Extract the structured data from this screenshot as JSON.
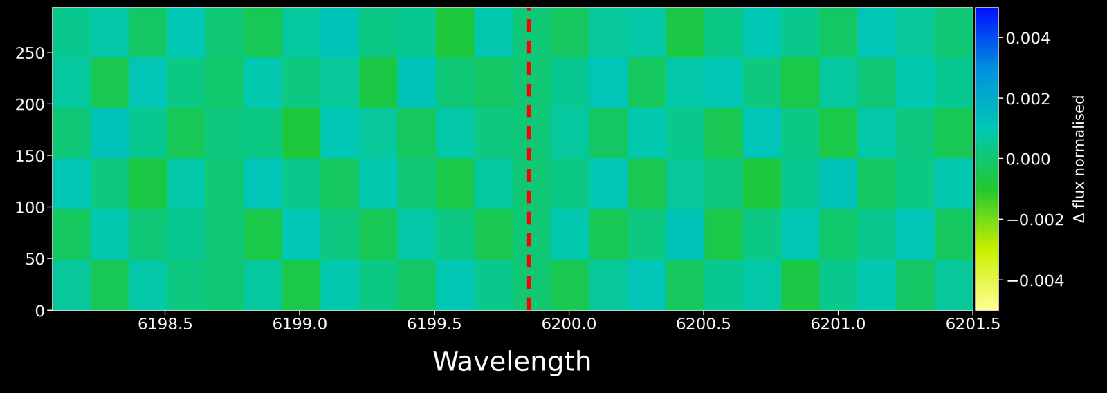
{
  "chart_data": {
    "type": "heatmap",
    "x_label": "Wavelength",
    "xlim": [
      6198.08,
      6201.5
    ],
    "xticks": [
      6198.5,
      6199.0,
      6199.5,
      6200.0,
      6200.5,
      6201.0,
      6201.5
    ],
    "ylim": [
      0,
      294
    ],
    "yticks": [
      0,
      50,
      100,
      150,
      200,
      250
    ],
    "vline": 6199.85,
    "colorbar_label": "Δ flux normalised",
    "colorbar_range": [
      -0.005,
      0.005
    ],
    "colorbar_ticks": [
      -0.004,
      -0.002,
      0.0,
      0.002,
      0.004
    ],
    "cells": [
      [
        0.0006,
        -0.0004,
        0.0008,
        0.0002,
        0.0,
        0.0007,
        -0.0006,
        0.0009,
        0.0003,
        -0.0002,
        0.001,
        0.0004,
        0.0,
        -0.0005,
        0.0006,
        0.0011,
        -0.0003,
        0.0005,
        0.0008,
        -0.0007,
        0.0004,
        0.0009,
        -0.0002,
        0.0006
      ],
      [
        -0.0003,
        0.0009,
        0.0001,
        0.0005,
        0.0001,
        -0.0006,
        0.001,
        0.0002,
        -0.0004,
        0.0008,
        0.0003,
        -0.0005,
        0.0001,
        0.0009,
        -0.0004,
        0.0002,
        0.0012,
        -0.0006,
        0.0003,
        0.001,
        -0.0001,
        0.0004,
        0.0011,
        -0.0003
      ],
      [
        0.001,
        0.0002,
        -0.0007,
        0.0008,
        0.0,
        0.0011,
        0.0004,
        -0.0003,
        0.0009,
        0.0001,
        -0.0006,
        0.0007,
        0.0,
        0.0003,
        0.001,
        -0.0005,
        0.0006,
        0.0002,
        -0.0008,
        0.0005,
        0.0012,
        -0.0002,
        0.0003,
        0.0009
      ],
      [
        0.0001,
        0.0012,
        0.0005,
        -0.0004,
        0.0002,
        0.0003,
        -0.0008,
        0.001,
        0.0006,
        -0.0003,
        0.0008,
        0.0002,
        0.0001,
        0.0007,
        -0.0002,
        0.0009,
        0.0004,
        -0.0005,
        0.0011,
        0.0003,
        -0.0006,
        0.0008,
        0.0002,
        -0.0004
      ],
      [
        0.0007,
        -0.0005,
        0.0011,
        0.0003,
        -0.0001,
        0.0009,
        0.0002,
        0.0006,
        -0.0007,
        0.0012,
        0.0001,
        -0.0002,
        0.0,
        0.0005,
        0.0011,
        -0.0003,
        0.0008,
        0.001,
        0.0002,
        -0.0006,
        0.0007,
        0.0001,
        0.0009,
        0.0005
      ],
      [
        0.0004,
        0.0008,
        -0.0002,
        0.001,
        0.0001,
        -0.0004,
        0.0007,
        0.0012,
        0.0003,
        0.0005,
        -0.0008,
        0.0009,
        0.0001,
        -0.0003,
        0.0006,
        0.0008,
        -0.0007,
        0.0003,
        0.001,
        0.0004,
        -0.0002,
        0.0011,
        0.0006,
        0.0
      ]
    ]
  }
}
